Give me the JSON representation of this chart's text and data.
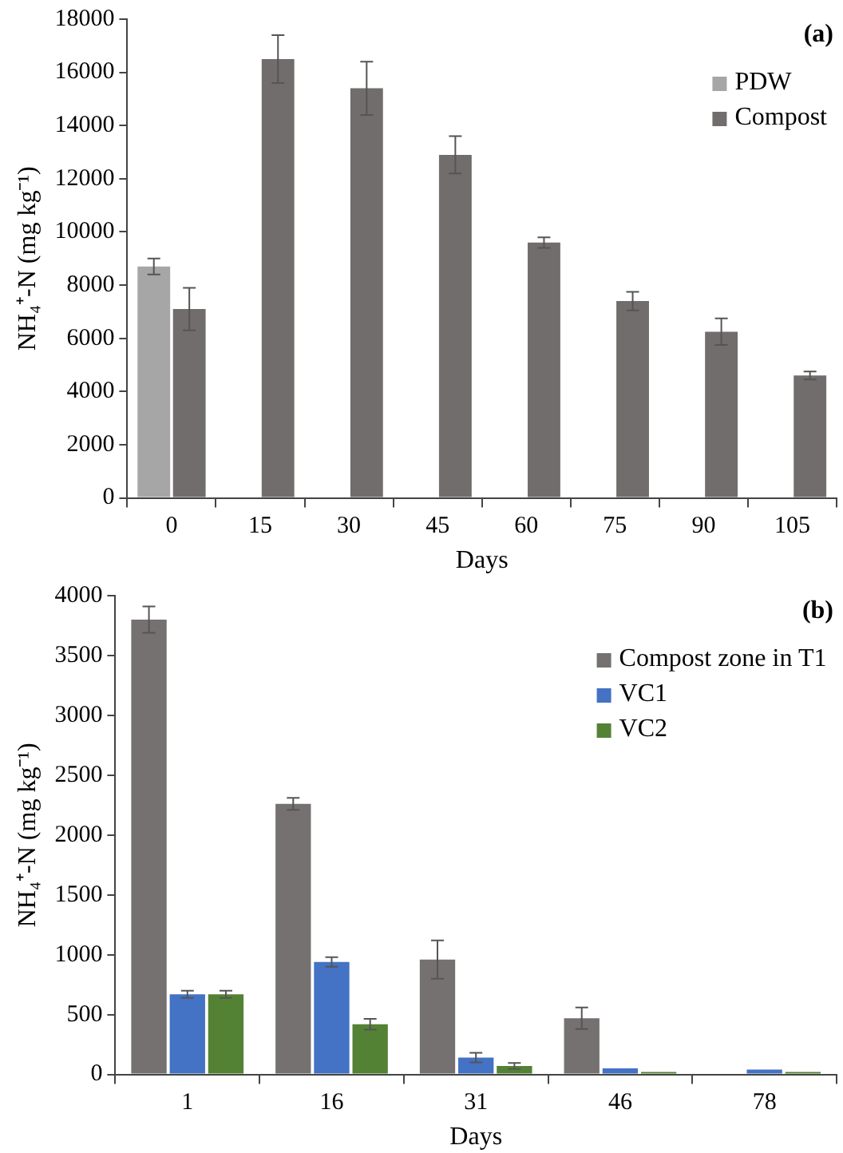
{
  "chart_data": [
    {
      "type": "bar",
      "categories": [
        "0",
        "15",
        "30",
        "45",
        "60",
        "75",
        "90",
        "105"
      ],
      "xlabel": "Days",
      "ylabel": "NH₄⁺-N (mg kg⁻¹)",
      "annotations": [
        "(a)"
      ],
      "series": [
        {
          "name": "PDW",
          "color": "#a6a6a6",
          "values": [
            8700,
            null,
            null,
            null,
            null,
            null,
            null,
            null
          ],
          "errors": [
            300,
            null,
            null,
            null,
            null,
            null,
            null,
            null
          ]
        },
        {
          "name": "Compost",
          "color": "#716d6c",
          "values": [
            7100,
            16500,
            15400,
            12900,
            9600,
            7400,
            6250,
            4600
          ],
          "errors": [
            800,
            900,
            1000,
            700,
            200,
            350,
            500,
            150
          ]
        }
      ],
      "ylim": [
        0,
        18000
      ],
      "yticks": [
        0,
        2000,
        4000,
        6000,
        8000,
        10000,
        12000,
        14000,
        16000,
        18000
      ],
      "grid": false,
      "legend": "top right"
    },
    {
      "type": "bar",
      "categories": [
        "1",
        "16",
        "31",
        "46",
        "78"
      ],
      "xlabel": "Days",
      "ylabel": "NH₄⁺-N (mg kg⁻¹)",
      "annotations": [
        "(b)"
      ],
      "series": [
        {
          "name": "Compost zone in T1",
          "color": "#767171",
          "values": [
            3800,
            2260,
            960,
            470,
            null
          ],
          "errors": [
            110,
            50,
            160,
            90,
            null
          ]
        },
        {
          "name": "VC1",
          "color": "#4472c4",
          "values": [
            670,
            940,
            140,
            50,
            40
          ],
          "errors": [
            30,
            40,
            40,
            null,
            null
          ]
        },
        {
          "name": "VC2",
          "color": "#548235",
          "values": [
            670,
            420,
            70,
            20,
            20
          ],
          "errors": [
            30,
            45,
            25,
            null,
            null
          ]
        }
      ],
      "ylim": [
        0,
        4000
      ],
      "yticks": [
        0,
        500,
        1000,
        1500,
        2000,
        2500,
        3000,
        3500,
        4000
      ],
      "grid": false,
      "legend": "top right"
    }
  ]
}
